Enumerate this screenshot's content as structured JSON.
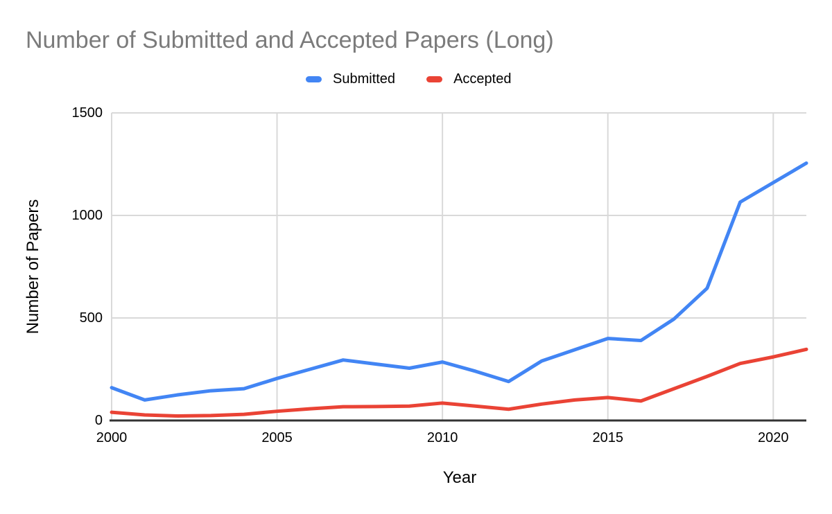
{
  "chart_data": {
    "type": "line",
    "title": "Number of Submitted and Accepted Papers (Long)",
    "xlabel": "Year",
    "ylabel": "Number of Papers",
    "legend_position": "top",
    "grid": true,
    "xlim": [
      2000,
      2021
    ],
    "ylim": [
      0,
      1500
    ],
    "xticks": [
      2000,
      2005,
      2010,
      2015,
      2020
    ],
    "yticks": [
      0,
      500,
      1000,
      1500
    ],
    "x": [
      2000,
      2001,
      2002,
      2003,
      2004,
      2005,
      2006,
      2007,
      2008,
      2009,
      2010,
      2011,
      2012,
      2013,
      2014,
      2015,
      2016,
      2017,
      2018,
      2019,
      2020,
      2021
    ],
    "series": [
      {
        "name": "Submitted",
        "color": "#4285F4",
        "values": [
          160,
          100,
          125,
          145,
          155,
          205,
          250,
          295,
          275,
          255,
          285,
          240,
          190,
          290,
          345,
          400,
          390,
          495,
          645,
          1065,
          1160,
          1255
        ]
      },
      {
        "name": "Accepted",
        "color": "#EA4335",
        "values": [
          40,
          27,
          22,
          24,
          30,
          45,
          57,
          67,
          68,
          70,
          85,
          70,
          55,
          80,
          100,
          112,
          95,
          155,
          215,
          278,
          310,
          347
        ]
      }
    ],
    "styles": {
      "title_color": "#7b7b7b",
      "gridline_color": "#d9d9d9",
      "axis_line_color": "#333333"
    }
  }
}
